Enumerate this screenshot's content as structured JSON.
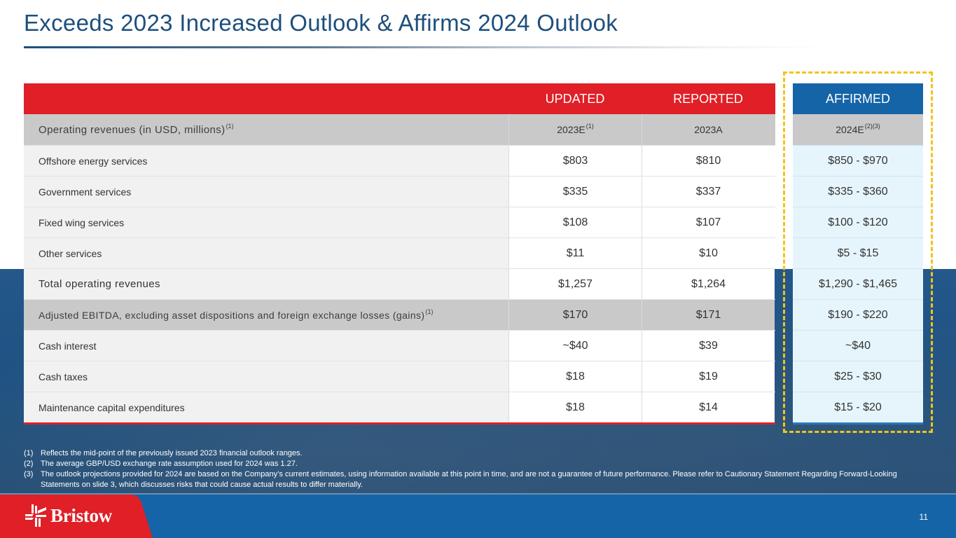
{
  "slide": {
    "title": "Exceeds 2023 Increased Outlook & Affirms 2024 Outlook",
    "page_number": "11"
  },
  "brand": {
    "name": "Bristow",
    "logo_icon": "bristow-logo-mark",
    "colors": {
      "title_blue": "#1d4f7c",
      "header_red": "#e01f27",
      "affirmed_blue": "#1564a8",
      "affirmed_cell": "#e6f5fc",
      "highlight_yellow": "#f2c318",
      "subheader_gray": "#c9c9c9"
    }
  },
  "table": {
    "group_headers": {
      "updated": "UPDATED",
      "reported": "REPORTED",
      "affirmed": "AFFIRMED"
    },
    "sub_header": {
      "label": "Operating revenues (in USD, millions)",
      "label_sup": "(1)",
      "col_2023e": "2023E",
      "col_2023e_sup": "(1)",
      "col_2023a": "2023A",
      "col_2024e": "2024E",
      "col_2024e_sup": "(2)(3)"
    },
    "rows": [
      {
        "label": "Offshore energy services",
        "e2023": "$803",
        "a2023": "$810",
        "e2024": "$850 - $970"
      },
      {
        "label": "Government services",
        "e2023": "$335",
        "a2023": "$337",
        "e2024": "$335 - $360"
      },
      {
        "label": "Fixed wing services",
        "e2023": "$108",
        "a2023": "$107",
        "e2024": "$100 - $120"
      },
      {
        "label": "Other services",
        "e2023": "$11",
        "a2023": "$10",
        "e2024": "$5 - $15"
      },
      {
        "label": "Total operating revenues",
        "e2023": "$1,257",
        "a2023": "$1,264",
        "e2024": "$1,290 - $1,465"
      },
      {
        "label": "Adjusted EBITDA, excluding asset dispositions and foreign exchange losses (gains)",
        "label_sup": "(1)",
        "e2023": "$170",
        "a2023": "$171",
        "e2024": "$190 - $220"
      },
      {
        "label": "Cash interest",
        "e2023": "~$40",
        "a2023": "$39",
        "e2024": "~$40"
      },
      {
        "label": "Cash taxes",
        "e2023": "$18",
        "a2023": "$19",
        "e2024": "$25 - $30"
      },
      {
        "label": "Maintenance capital expenditures",
        "e2023": "$18",
        "a2023": "$14",
        "e2024": "$15 - $20"
      }
    ]
  },
  "footnotes": [
    {
      "num": "(1)",
      "text": "Reflects the mid-point of the previously issued 2023 financial outlook ranges."
    },
    {
      "num": "(2)",
      "text": "The average GBP/USD exchange rate assumption used for 2024 was 1.27."
    },
    {
      "num": "(3)",
      "text": "The outlook projections provided for 2024 are based on the Company’s current estimates, using information available at this point in time, and are not a guarantee of future performance. Please refer to Cautionary Statement Regarding Forward-Looking Statements on slide 3, which discusses risks that could cause actual results to differ materially."
    }
  ]
}
